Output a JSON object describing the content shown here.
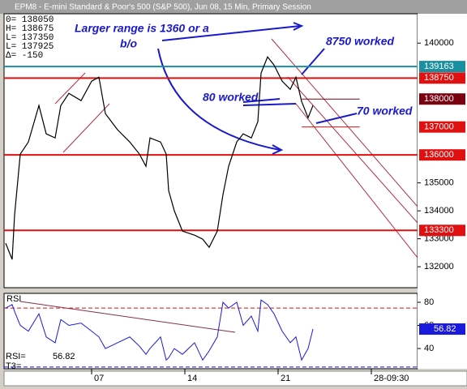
{
  "title_bar": "EPM8 - E-mini Standard & Poor's 500 (S&P 500), Jun 08, 15 Min, Primary Session",
  "quote": [
    "0=  138050",
    "H=  138675",
    "L=  137350",
    "L=  137925",
    "Δ=     -150"
  ],
  "chart_data": [
    {
      "type": "line",
      "color": "#000000",
      "x": [
        2,
        10,
        13,
        20,
        30,
        43,
        52,
        63,
        70,
        80,
        95,
        108,
        117,
        125,
        140,
        155,
        167,
        175,
        180,
        193,
        200,
        203,
        210,
        220,
        235,
        245,
        253,
        263,
        270,
        277,
        287,
        295,
        305,
        313,
        317,
        325,
        333,
        343,
        353,
        360,
        367,
        375,
        381
      ],
      "values": [
        132841,
        132261,
        133855,
        136029,
        136464,
        137768,
        136754,
        136609,
        137768,
        138203,
        137942,
        138638,
        138783,
        137478,
        136899,
        136464,
        136029,
        135594,
        136609,
        136464,
        136029,
        134725,
        134000,
        133275,
        133130,
        132986,
        132696,
        133275,
        134580,
        135594,
        136464,
        136754,
        136609,
        137188,
        138928,
        139507,
        139217,
        138638,
        138348,
        138783,
        137913,
        137333,
        137768
      ],
      "xlim": [
        0,
        510
      ],
      "xticks": [
        {
          "value": 108,
          "label": "07"
        },
        {
          "value": 223,
          "label": "14"
        },
        {
          "value": 338,
          "label": "21"
        },
        {
          "value": 453,
          "label": "28-09:30"
        }
      ],
      "ylim": [
        131250,
        141050
      ],
      "yticks": [
        132000,
        133000,
        134000,
        135000,
        140000
      ],
      "levels": [
        {
          "value": 139163,
          "color": "#1a8fa0",
          "line": true
        },
        {
          "value": 138750,
          "color": "#e01010",
          "line": true
        },
        {
          "value": 138000,
          "color": "#7a0010",
          "line": false
        },
        {
          "value": 137000,
          "color": "#e01010",
          "line": false
        },
        {
          "value": 136000,
          "color": "#e01010",
          "line": true
        },
        {
          "value": 133300,
          "color": "#e01010",
          "line": true
        }
      ],
      "annotations": [
        "Larger range is 1360 or a",
        "b/o",
        "8750 worked",
        "80 worked",
        "70 worked"
      ]
    },
    {
      "type": "line",
      "color": "#1a1add",
      "label": "RSI",
      "readout": "RSI=",
      "t3": "T3=",
      "x": [
        2,
        10,
        13,
        20,
        30,
        43,
        52,
        63,
        70,
        80,
        95,
        108,
        117,
        125,
        140,
        155,
        167,
        175,
        180,
        193,
        200,
        203,
        210,
        220,
        235,
        245,
        253,
        263,
        270,
        277,
        287,
        295,
        305,
        313,
        317,
        325,
        333,
        343,
        353,
        360,
        367,
        375,
        381
      ],
      "values": [
        75,
        78,
        72,
        60,
        55,
        70,
        50,
        45,
        65,
        60,
        62,
        55,
        50,
        40,
        45,
        50,
        42,
        35,
        40,
        50,
        30,
        32,
        40,
        35,
        45,
        30,
        38,
        50,
        80,
        75,
        80,
        60,
        68,
        55,
        82,
        78,
        70,
        55,
        45,
        50,
        30,
        40,
        56.82
      ],
      "xlim": [
        0,
        510
      ],
      "ylim": [
        22.5,
        87.7
      ],
      "yticks": [
        40,
        60,
        80
      ],
      "bands": [
        {
          "value": 75,
          "color": "#e01010"
        },
        {
          "value": 24,
          "color": "#1a1add"
        }
      ]
    }
  ]
}
